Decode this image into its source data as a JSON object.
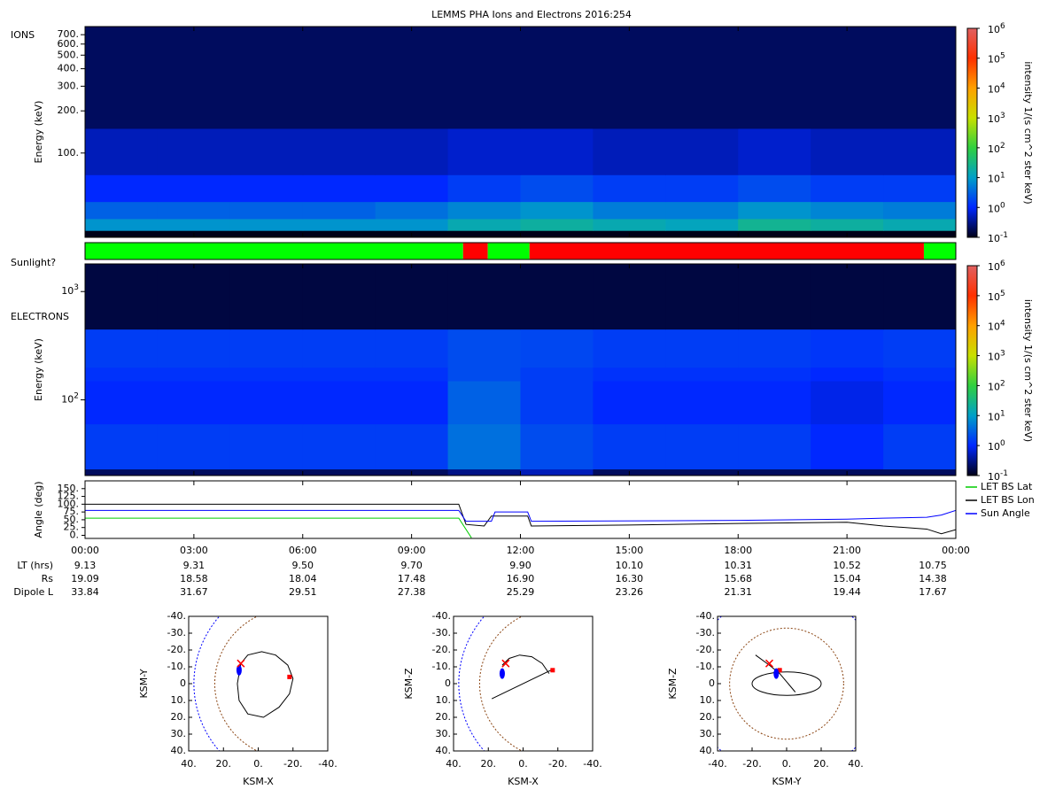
{
  "title": "LEMMS PHA Ions and Electrons  2016:254",
  "chart_data": [
    {
      "type": "heatmap",
      "panel_label": "IONS",
      "ylabel": "Energy (keV)",
      "ylog": true,
      "xlim": [
        0,
        24
      ],
      "ylim": [
        25,
        800
      ],
      "yticks": [
        {
          "value": 100,
          "label": "100."
        },
        {
          "value": 200,
          "label": "200."
        },
        {
          "value": 300,
          "label": "300."
        },
        {
          "value": 400,
          "label": "400."
        },
        {
          "value": 500,
          "label": "500."
        },
        {
          "value": 600,
          "label": "600."
        },
        {
          "value": 700,
          "label": "700."
        }
      ],
      "x_bins": [
        0,
        2,
        4,
        6,
        8,
        10,
        12,
        14,
        16,
        18,
        20,
        22,
        24
      ],
      "y_bins": [
        25,
        28,
        34,
        45,
        70,
        150,
        800
      ],
      "z": [
        [
          0.1,
          0.1,
          0.1,
          0.1,
          0.1,
          0.1,
          0.1,
          0.1,
          0.1,
          0.1,
          0.1,
          0.1
        ],
        [
          8,
          8,
          8,
          8,
          8,
          15,
          20,
          15,
          12,
          25,
          20,
          15
        ],
        [
          3,
          3,
          3,
          3,
          4,
          6,
          8,
          5,
          5,
          8,
          6,
          5
        ],
        [
          1,
          1,
          1,
          1,
          1,
          1.5,
          2,
          1.5,
          1.5,
          2,
          1.5,
          1.5
        ],
        [
          0.5,
          0.5,
          0.5,
          0.5,
          0.5,
          0.6,
          0.6,
          0.5,
          0.5,
          0.6,
          0.5,
          0.5
        ],
        [
          0.2,
          0.2,
          0.2,
          0.2,
          0.2,
          0.2,
          0.2,
          0.2,
          0.2,
          0.2,
          0.2,
          0.2
        ]
      ],
      "zlim": [
        0.1,
        1000000
      ],
      "zlabel": "intensity 1/(s cm^2 ster keV)",
      "zticks": [
        {
          "value": 0.1,
          "label": "10^-1"
        },
        {
          "value": 1,
          "label": "10^0"
        },
        {
          "value": 10,
          "label": "10^1"
        },
        {
          "value": 100,
          "label": "10^2"
        },
        {
          "value": 1000,
          "label": "10^3"
        },
        {
          "value": 10000,
          "label": "10^4"
        },
        {
          "value": 100000,
          "label": "10^5"
        },
        {
          "value": 1000000,
          "label": "10^6"
        }
      ],
      "colormap": [
        "#000018",
        "#0028ff",
        "#00a0c8",
        "#30d040",
        "#c8e000",
        "#ffa000",
        "#ff3000",
        "#e06060"
      ]
    },
    {
      "type": "timeline",
      "label": "Sunlight?",
      "xlim": [
        0,
        24
      ],
      "segments": [
        {
          "start": 0,
          "end": 10.42,
          "color": "#00ff00"
        },
        {
          "start": 10.42,
          "end": 11.1,
          "color": "#ff0000"
        },
        {
          "start": 11.1,
          "end": 12.25,
          "color": "#00ff00"
        },
        {
          "start": 12.25,
          "end": 23.12,
          "color": "#ff0000"
        },
        {
          "start": 23.12,
          "end": 24,
          "color": "#00ff00"
        }
      ]
    },
    {
      "type": "heatmap",
      "panel_label": "ELECTRONS",
      "ylabel": "Energy (keV)",
      "ylog": true,
      "xlim": [
        0,
        24
      ],
      "ylim": [
        20,
        1800
      ],
      "yticks": [
        {
          "value": 100,
          "label": "10^2"
        },
        {
          "value": 1000,
          "label": "10^3"
        }
      ],
      "x_bins": [
        0,
        2,
        4,
        6,
        8,
        10,
        12,
        14,
        16,
        18,
        20,
        22,
        24
      ],
      "y_bins": [
        20,
        23,
        60,
        150,
        200,
        450,
        1800
      ],
      "z": [
        [
          0.2,
          0.2,
          0.2,
          0.2,
          0.2,
          0.3,
          0.5,
          0.2,
          0.2,
          0.2,
          0.2,
          0.2
        ],
        [
          1.5,
          1.5,
          1.5,
          1.5,
          1.5,
          4,
          2,
          1.5,
          1.5,
          1.5,
          1,
          1.5
        ],
        [
          1,
          1,
          1,
          1,
          1,
          3,
          1.5,
          1,
          1,
          1,
          0.8,
          1
        ],
        [
          1.2,
          1.2,
          1.2,
          1.2,
          1.2,
          2,
          1.5,
          1.2,
          1.2,
          1.2,
          1,
          1.2
        ],
        [
          1.5,
          1.5,
          1.5,
          1.5,
          1.5,
          2,
          1.8,
          1.5,
          1.5,
          1.5,
          1.3,
          1.5
        ],
        [
          0.15,
          0.15,
          0.15,
          0.15,
          0.15,
          0.15,
          0.15,
          0.15,
          0.15,
          0.15,
          0.15,
          0.15
        ]
      ],
      "zlim": [
        0.1,
        1000000
      ],
      "zlabel": "intensity 1/(s cm^2 ster keV)",
      "zticks": [
        {
          "value": 0.1,
          "label": "10^-1"
        },
        {
          "value": 1,
          "label": "10^0"
        },
        {
          "value": 10,
          "label": "10^1"
        },
        {
          "value": 100,
          "label": "10^2"
        },
        {
          "value": 1000,
          "label": "10^3"
        },
        {
          "value": 10000,
          "label": "10^4"
        },
        {
          "value": 100000,
          "label": "10^5"
        },
        {
          "value": 1000000,
          "label": "10^6"
        }
      ],
      "colormap": [
        "#000018",
        "#0028ff",
        "#00a0c8",
        "#30d040",
        "#c8e000",
        "#ffa000",
        "#ff3000",
        "#e06060"
      ]
    },
    {
      "type": "line",
      "ylabel": "Angle (deg)",
      "xlim": [
        0,
        24
      ],
      "ylim": [
        -10,
        175
      ],
      "yticks": [
        {
          "value": 0,
          "label": "0."
        },
        {
          "value": 25,
          "label": "25."
        },
        {
          "value": 50,
          "label": "50."
        },
        {
          "value": 75,
          "label": "75."
        },
        {
          "value": 100,
          "label": "100."
        },
        {
          "value": 125,
          "label": "125."
        },
        {
          "value": 150,
          "label": "150."
        }
      ],
      "xticks": [
        {
          "value": 0,
          "label": "00:00"
        },
        {
          "value": 3,
          "label": "03:00"
        },
        {
          "value": 6,
          "label": "06:00"
        },
        {
          "value": 9,
          "label": "09:00"
        },
        {
          "value": 12,
          "label": "12:00"
        },
        {
          "value": 15,
          "label": "15:00"
        },
        {
          "value": 18,
          "label": "18:00"
        },
        {
          "value": 21,
          "label": "21:00"
        },
        {
          "value": 24,
          "label": "00:00"
        }
      ],
      "series": [
        {
          "name": "LET BS Lat",
          "color": "#00cc00",
          "x": [
            0,
            10.3,
            10.65
          ],
          "values": [
            55,
            55,
            -8
          ]
        },
        {
          "name": "LET BS Lon",
          "color": "#000000",
          "x": [
            0,
            10.3,
            10.5,
            11,
            11.2,
            12.2,
            12.3,
            15,
            18,
            21,
            22,
            23.2,
            23.6,
            24
          ],
          "values": [
            100,
            100,
            35,
            30,
            62,
            62,
            30,
            33,
            38,
            42,
            30,
            20,
            5,
            18
          ]
        },
        {
          "name": "Sun Angle",
          "color": "#0000ff",
          "x": [
            0,
            10.3,
            10.5,
            11.2,
            11.3,
            12.2,
            12.3,
            18,
            21,
            22,
            23.2,
            23.6,
            24
          ],
          "values": [
            80,
            80,
            45,
            45,
            75,
            75,
            45,
            48,
            52,
            55,
            58,
            65,
            80
          ]
        }
      ]
    },
    {
      "type": "orbit",
      "xlabel": "KSM-X",
      "ylabel": "KSM-Y",
      "xlim": [
        40,
        -40
      ],
      "ylim": [
        40,
        -40
      ],
      "xticks": [
        {
          "value": 40,
          "label": "40."
        },
        {
          "value": 20,
          "label": "20."
        },
        {
          "value": 0,
          "label": "0."
        },
        {
          "value": -20,
          "label": "-20."
        },
        {
          "value": -40,
          "label": "-40."
        }
      ],
      "yticks": [
        {
          "value": -40,
          "label": "-40."
        },
        {
          "value": -30,
          "label": "-30."
        },
        {
          "value": -20,
          "label": "-20."
        },
        {
          "value": -10,
          "label": "-10."
        },
        {
          "value": 0,
          "label": "0"
        },
        {
          "value": 10,
          "label": "10."
        },
        {
          "value": 20,
          "label": "20."
        },
        {
          "value": 30,
          "label": "30."
        },
        {
          "value": 40,
          "label": "40."
        }
      ],
      "boundaries": [
        {
          "cx": -20,
          "cy": 0,
          "r": 45,
          "color": "#8b4513"
        },
        {
          "cx": -25,
          "cy": 0,
          "r": 62,
          "color": "#0000ff"
        }
      ],
      "orbit": {
        "x": [
          10,
          6,
          -2,
          -10,
          -17,
          -20,
          -18,
          -12,
          -3,
          6,
          11,
          12,
          10
        ],
        "y": [
          -12,
          -17,
          -19,
          -17,
          -11,
          -3,
          6,
          14,
          20,
          18,
          10,
          0,
          -12
        ]
      },
      "markers": [
        {
          "x": -18,
          "y": -4,
          "color": "#ff0000",
          "shape": "square"
        },
        {
          "x": 11,
          "y": -8,
          "color": "#0000ff",
          "shape": "dot"
        },
        {
          "x": 10,
          "y": -12,
          "color": "#ff0000",
          "shape": "cross"
        }
      ]
    },
    {
      "type": "orbit",
      "xlabel": "KSM-X",
      "ylabel": "KSM-Z",
      "xlim": [
        40,
        -40
      ],
      "ylim": [
        40,
        -40
      ],
      "xticks": [
        {
          "value": 40,
          "label": "40."
        },
        {
          "value": 20,
          "label": "20."
        },
        {
          "value": 0,
          "label": "0."
        },
        {
          "value": -20,
          "label": "-20."
        },
        {
          "value": -40,
          "label": "-40."
        }
      ],
      "yticks": [
        {
          "value": -40,
          "label": "-40."
        },
        {
          "value": -30,
          "label": "-30."
        },
        {
          "value": -20,
          "label": "-20."
        },
        {
          "value": -10,
          "label": "-10."
        },
        {
          "value": 0,
          "label": "0"
        },
        {
          "value": 10,
          "label": "10."
        },
        {
          "value": 20,
          "label": "20."
        },
        {
          "value": 30,
          "label": "30."
        },
        {
          "value": 40,
          "label": "40."
        }
      ],
      "boundaries": [
        {
          "cx": -20,
          "cy": 0,
          "r": 45,
          "color": "#8b4513"
        },
        {
          "cx": -25,
          "cy": 0,
          "r": 62,
          "color": "#0000ff"
        }
      ],
      "orbit": {
        "x": [
          12,
          8,
          2,
          -5,
          -11,
          -15,
          null,
          18,
          -16
        ],
        "y": [
          -11,
          -15,
          -17,
          -16,
          -12,
          -6,
          null,
          9,
          -8
        ]
      },
      "markers": [
        {
          "x": -17,
          "y": -8,
          "color": "#ff0000",
          "shape": "square"
        },
        {
          "x": 12,
          "y": -6,
          "color": "#0000ff",
          "shape": "dot"
        },
        {
          "x": 10,
          "y": -12,
          "color": "#ff0000",
          "shape": "cross"
        }
      ]
    },
    {
      "type": "orbit",
      "xlabel": "KSM-Y",
      "ylabel": "KSM-Z",
      "xlim": [
        -40,
        40
      ],
      "ylim": [
        40,
        -40
      ],
      "xticks": [
        {
          "value": -40,
          "label": "-40."
        },
        {
          "value": -20,
          "label": "-20."
        },
        {
          "value": 0,
          "label": "0."
        },
        {
          "value": 20,
          "label": "20."
        },
        {
          "value": 40,
          "label": "40."
        }
      ],
      "yticks": [
        {
          "value": -40,
          "label": "-40."
        },
        {
          "value": -30,
          "label": "-30."
        },
        {
          "value": -20,
          "label": "-20."
        },
        {
          "value": -10,
          "label": "-10."
        },
        {
          "value": 0,
          "label": "0"
        },
        {
          "value": 10,
          "label": "10."
        },
        {
          "value": 20,
          "label": "20."
        },
        {
          "value": 30,
          "label": "30."
        },
        {
          "value": 40,
          "label": "40."
        }
      ],
      "boundaries": [
        {
          "cx": 0,
          "cy": 0,
          "r": 33,
          "color": "#8b4513"
        },
        {
          "cx": 0,
          "cy": 0,
          "r": 55,
          "color": "#0000ff"
        }
      ],
      "ellipse": {
        "cx": 0,
        "cy": 0,
        "rx": 20,
        "ry": 7
      },
      "orbit": {
        "x": [
          -18,
          -10,
          -4,
          5
        ],
        "y": [
          -17,
          -11,
          -6,
          5
        ]
      },
      "markers": [
        {
          "x": -4,
          "y": -8,
          "color": "#ff0000",
          "shape": "square"
        },
        {
          "x": -6,
          "y": -6,
          "color": "#0000ff",
          "shape": "dot"
        },
        {
          "x": -10,
          "y": -12,
          "color": "#ff0000",
          "shape": "cross"
        }
      ]
    }
  ],
  "ephemeris": {
    "rows": [
      {
        "label": "LT (hrs)",
        "values": [
          "9.13",
          "9.31",
          "9.50",
          "9.70",
          "9.90",
          "10.10",
          "10.31",
          "10.52",
          "10.75"
        ]
      },
      {
        "label": "Rs",
        "values": [
          "19.09",
          "18.58",
          "18.04",
          "17.48",
          "16.90",
          "16.30",
          "15.68",
          "15.04",
          "14.38"
        ]
      },
      {
        "label": "Dipole L",
        "values": [
          "33.84",
          "31.67",
          "29.51",
          "27.38",
          "25.29",
          "23.26",
          "21.31",
          "19.44",
          "17.67"
        ]
      }
    ]
  }
}
